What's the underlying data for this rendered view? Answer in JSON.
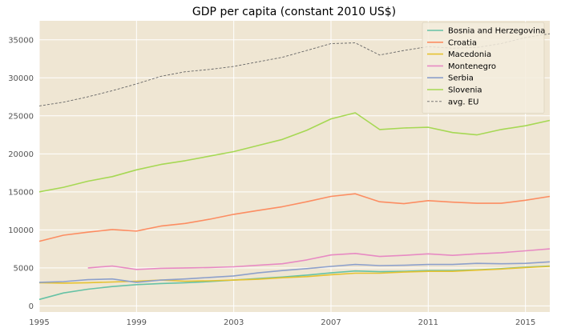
{
  "chart_data": {
    "type": "line",
    "title": "GDP per capita (constant 2010 US$)",
    "xlabel": "",
    "ylabel": "",
    "xlim": [
      1995,
      2016
    ],
    "ylim": [
      -800,
      37500
    ],
    "xticks": [
      1995,
      1999,
      2003,
      2007,
      2011,
      2015
    ],
    "yticks": [
      0,
      5000,
      10000,
      15000,
      20000,
      25000,
      30000,
      35000
    ],
    "grid": true,
    "background": "#efe6d3",
    "legend_position": "top-right",
    "x": [
      1995,
      1996,
      1997,
      1998,
      1999,
      2000,
      2001,
      2002,
      2003,
      2004,
      2005,
      2006,
      2007,
      2008,
      2009,
      2010,
      2011,
      2012,
      2013,
      2014,
      2015,
      2016
    ],
    "series": [
      {
        "name": "Bosnia and Herzegovina",
        "color": "#66c2a5",
        "dashed": false,
        "values": [
          850,
          1700,
          2200,
          2550,
          2800,
          2950,
          3050,
          3200,
          3400,
          3600,
          3800,
          4050,
          4350,
          4600,
          4500,
          4550,
          4650,
          4650,
          4750,
          4900,
          5100,
          5250
        ]
      },
      {
        "name": "Croatia",
        "color": "#fc8d62",
        "dashed": false,
        "values": [
          8500,
          9300,
          9700,
          10050,
          9850,
          10500,
          10850,
          11400,
          12050,
          12550,
          13050,
          13700,
          14400,
          14750,
          13700,
          13450,
          13850,
          13650,
          13500,
          13500,
          13900,
          14400
        ]
      },
      {
        "name": "Macedonia",
        "color": "#e5c230",
        "dashed": false,
        "values": [
          3050,
          3000,
          3050,
          3150,
          3250,
          3400,
          3250,
          3300,
          3400,
          3500,
          3700,
          3850,
          4100,
          4300,
          4300,
          4450,
          4550,
          4550,
          4700,
          4850,
          5050,
          5200
        ]
      },
      {
        "name": "Montenegro",
        "color": "#e78ac3",
        "dashed": false,
        "values": [
          null,
          null,
          5000,
          5250,
          4800,
          4950,
          5000,
          5050,
          5150,
          5350,
          5550,
          6050,
          6700,
          6900,
          6500,
          6650,
          6850,
          6650,
          6850,
          7000,
          7250,
          7500
        ]
      },
      {
        "name": "Serbia",
        "color": "#8da0cb",
        "dashed": false,
        "values": [
          3100,
          3200,
          3450,
          3550,
          3100,
          3400,
          3550,
          3750,
          3950,
          4350,
          4650,
          4900,
          5200,
          5450,
          5300,
          5350,
          5450,
          5450,
          5600,
          5550,
          5600,
          5800
        ]
      },
      {
        "name": "Slovenia",
        "color": "#a6d854",
        "dashed": false,
        "values": [
          15000,
          15600,
          16400,
          17000,
          17900,
          18600,
          19100,
          19700,
          20300,
          21100,
          21900,
          23100,
          24600,
          25400,
          23200,
          23400,
          23500,
          22800,
          22500,
          23200,
          23700,
          24400
        ]
      },
      {
        "name": "avg. EU",
        "color": "#666666",
        "dashed": true,
        "values": [
          26300,
          26800,
          27500,
          28300,
          29200,
          30200,
          30800,
          31100,
          31500,
          32100,
          32700,
          33600,
          34500,
          34600,
          33000,
          33600,
          34100,
          33900,
          34000,
          34500,
          35300,
          35800
        ]
      }
    ]
  }
}
